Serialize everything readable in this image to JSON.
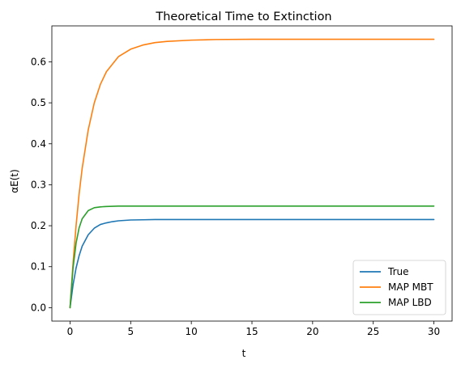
{
  "chart_data": {
    "type": "line",
    "title": "Theoretical Time to Extinction",
    "xlabel": "t",
    "ylabel": "αE(t)",
    "xlim": [
      -1.5,
      31.5
    ],
    "ylim": [
      -0.0328,
      0.6878
    ],
    "xticks": [
      0,
      5,
      10,
      15,
      20,
      25,
      30
    ],
    "yticks": [
      0.0,
      0.1,
      0.2,
      0.3,
      0.4,
      0.5,
      0.6
    ],
    "xtick_labels": [
      "0",
      "5",
      "10",
      "15",
      "20",
      "25",
      "30"
    ],
    "ytick_labels": [
      "0.0",
      "0.1",
      "0.2",
      "0.3",
      "0.4",
      "0.5",
      "0.6"
    ],
    "grid": false,
    "legend_position": "lower right",
    "series": [
      {
        "name": "True",
        "color": "#1f77b4",
        "x": [
          0,
          0.25,
          0.5,
          0.75,
          1,
          1.5,
          2,
          2.5,
          3,
          3.5,
          4,
          5,
          6,
          7,
          8,
          10,
          12,
          15,
          20,
          25,
          30
        ],
        "y": [
          0.0,
          0.056,
          0.097,
          0.127,
          0.15,
          0.178,
          0.194,
          0.203,
          0.207,
          0.21,
          0.212,
          0.214,
          0.2145,
          0.215,
          0.215,
          0.215,
          0.215,
          0.215,
          0.215,
          0.215,
          0.215
        ]
      },
      {
        "name": "MAP MBT",
        "color": "#ff7f0e",
        "x": [
          0,
          0.25,
          0.5,
          0.75,
          1,
          1.5,
          2,
          2.5,
          3,
          4,
          5,
          6,
          7,
          8,
          10,
          12,
          15,
          20,
          25,
          30
        ],
        "y": [
          0.0,
          0.11,
          0.201,
          0.278,
          0.34,
          0.434,
          0.5,
          0.545,
          0.576,
          0.613,
          0.631,
          0.641,
          0.647,
          0.65,
          0.653,
          0.6545,
          0.655,
          0.655,
          0.655,
          0.655
        ]
      },
      {
        "name": "MAP LBD",
        "color": "#2ca02c",
        "x": [
          0,
          0.25,
          0.5,
          0.75,
          1,
          1.5,
          2,
          2.5,
          3,
          3.5,
          4,
          5,
          6,
          7,
          8,
          10,
          15,
          20,
          25,
          30
        ],
        "y": [
          0.0,
          0.098,
          0.158,
          0.195,
          0.217,
          0.237,
          0.244,
          0.246,
          0.247,
          0.2475,
          0.248,
          0.248,
          0.248,
          0.248,
          0.248,
          0.248,
          0.248,
          0.248,
          0.248,
          0.248
        ]
      }
    ]
  }
}
